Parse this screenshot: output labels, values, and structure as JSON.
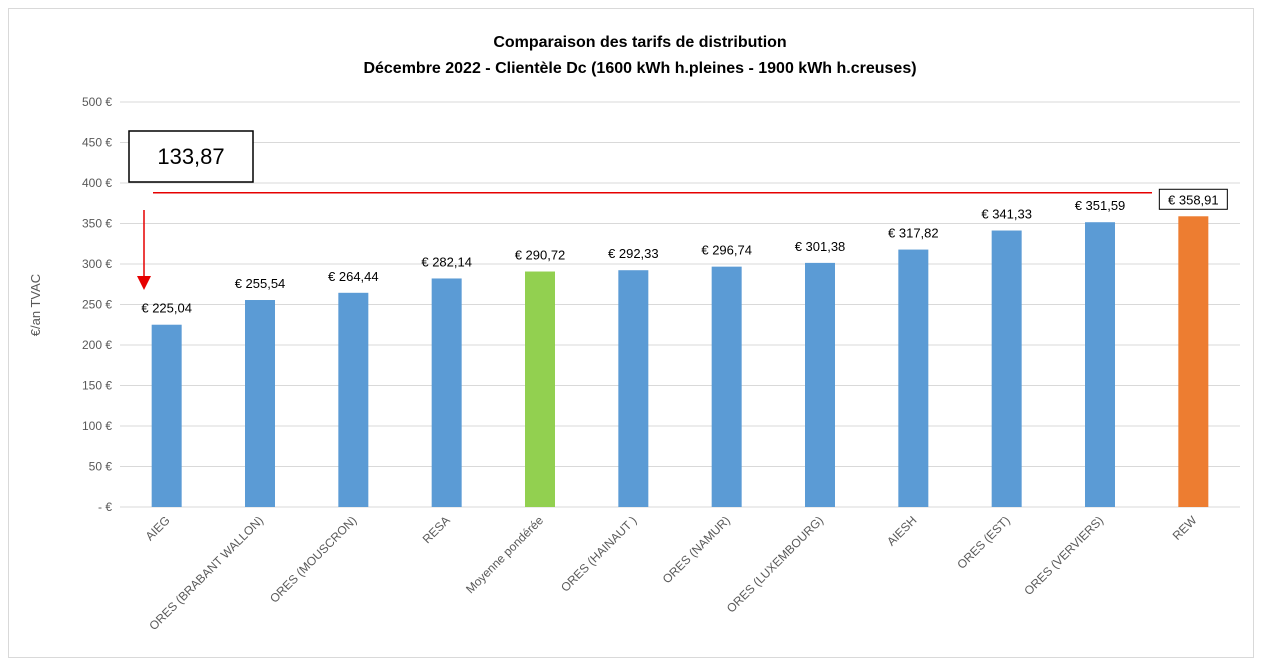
{
  "chart_data": {
    "type": "bar",
    "title": "Comparaison des tarifs de distribution",
    "subtitle": "Décembre  2022 - Clientèle Dc (1600 kWh h.pleines - 1900 kWh h.creuses)",
    "ylabel": "€/an TVAC",
    "xlabel": "",
    "ylim": [
      0,
      500
    ],
    "ytick_labels": [
      "- €",
      "50 €",
      "100 €",
      "150 €",
      "200 €",
      "250 €",
      "300 €",
      "350 €",
      "400 €",
      "450 €",
      "500 €"
    ],
    "grid": true,
    "categories": [
      "AIEG",
      "ORES (BRABANT WALLON)",
      "ORES (MOUSCRON)",
      "RESA",
      "Moyenne pondérée",
      "ORES (HAINAUT )",
      "ORES (NAMUR)",
      "ORES (LUXEMBOURG)",
      "AIESH",
      "ORES (EST)",
      "ORES (VERVIERS)",
      "REW"
    ],
    "values": [
      225.04,
      255.54,
      264.44,
      282.14,
      290.72,
      292.33,
      296.74,
      301.38,
      317.82,
      341.33,
      351.59,
      358.91
    ],
    "data_labels": [
      "€ 225,04",
      "€ 255,54",
      "€ 264,44",
      "€ 282,14",
      "€ 290,72",
      "€ 292,33",
      "€ 296,74",
      "€ 301,38",
      "€ 317,82",
      "€ 341,33",
      "€ 351,59",
      "€ 358,91"
    ],
    "colors": [
      "#5B9BD5",
      "#5B9BD5",
      "#5B9BD5",
      "#5B9BD5",
      "#92D050",
      "#5B9BD5",
      "#5B9BD5",
      "#5B9BD5",
      "#5B9BD5",
      "#5B9BD5",
      "#5B9BD5",
      "#ED7D31"
    ],
    "annotation": {
      "text": "133,87",
      "line_value": 388,
      "arrow_color": "#E60000"
    }
  }
}
